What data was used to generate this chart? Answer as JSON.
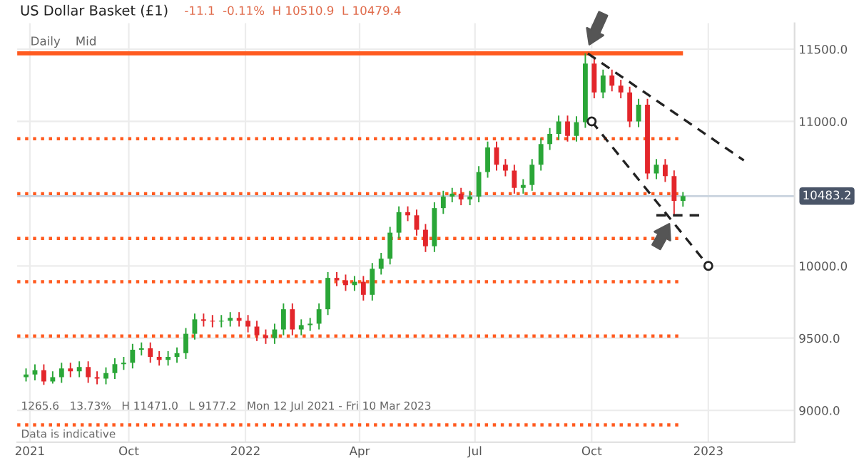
{
  "chart_data": {
    "type": "candlestick",
    "title": "US Dollar Basket (£1)",
    "subtitle": "-11.1  -0.11%  H 10510.9  L 10479.4",
    "annotations": [
      "Daily",
      "Mid",
      "1265.6   13.73%   H 11471.0   L 9177.2   Mon 12 Jul 2021 - Fri 10 Mar 2023",
      "Data is indicative"
    ],
    "x": [
      "2021-07-12",
      "2021-07-19",
      "2021-07-26",
      "2021-08-02",
      "2021-08-09",
      "2021-08-16",
      "2021-08-23",
      "2021-08-30",
      "2021-09-06",
      "2021-09-13",
      "2021-09-20",
      "2021-09-27",
      "2021-10-04",
      "2021-10-11",
      "2021-10-18",
      "2021-10-25",
      "2021-11-01",
      "2021-11-08",
      "2021-11-15",
      "2021-11-22",
      "2021-11-29",
      "2021-12-06",
      "2021-12-13",
      "2021-12-20",
      "2021-12-27",
      "2022-01-03",
      "2022-01-10",
      "2022-01-17",
      "2022-01-24",
      "2022-01-31",
      "2022-02-07",
      "2022-02-14",
      "2022-02-21",
      "2022-02-28",
      "2022-03-07",
      "2022-03-14",
      "2022-03-21",
      "2022-03-28",
      "2022-04-04",
      "2022-04-11",
      "2022-04-18",
      "2022-04-25",
      "2022-05-02",
      "2022-05-09",
      "2022-05-16",
      "2022-05-23",
      "2022-05-30",
      "2022-06-06",
      "2022-06-13",
      "2022-06-20",
      "2022-06-27",
      "2022-07-04",
      "2022-07-11",
      "2022-07-18",
      "2022-07-25",
      "2022-08-01",
      "2022-08-08",
      "2022-08-15",
      "2022-08-22",
      "2022-08-29",
      "2022-09-05",
      "2022-09-12",
      "2022-09-19",
      "2022-09-26",
      "2022-10-03",
      "2022-10-10",
      "2022-10-17",
      "2022-10-24",
      "2022-10-31",
      "2022-11-07",
      "2022-11-14",
      "2022-11-21",
      "2022-11-28",
      "2022-12-05",
      "2022-12-12"
    ],
    "ohlc": [
      [
        9230,
        9290,
        9200,
        9248
      ],
      [
        9248,
        9318,
        9208,
        9278
      ],
      [
        9278,
        9318,
        9177,
        9200
      ],
      [
        9200,
        9270,
        9185,
        9230
      ],
      [
        9230,
        9330,
        9190,
        9290
      ],
      [
        9290,
        9330,
        9230,
        9270
      ],
      [
        9270,
        9340,
        9230,
        9300
      ],
      [
        9300,
        9340,
        9190,
        9230
      ],
      [
        9230,
        9270,
        9180,
        9220
      ],
      [
        9220,
        9298,
        9180,
        9258
      ],
      [
        9258,
        9360,
        9218,
        9320
      ],
      [
        9320,
        9370,
        9280,
        9330
      ],
      [
        9330,
        9460,
        9290,
        9420
      ],
      [
        9420,
        9470,
        9380,
        9430
      ],
      [
        9430,
        9470,
        9330,
        9370
      ],
      [
        9370,
        9410,
        9310,
        9350
      ],
      [
        9350,
        9410,
        9310,
        9370
      ],
      [
        9370,
        9436,
        9330,
        9396
      ],
      [
        9396,
        9570,
        9356,
        9530
      ],
      [
        9530,
        9670,
        9490,
        9630
      ],
      [
        9630,
        9670,
        9580,
        9620
      ],
      [
        9620,
        9660,
        9575,
        9615
      ],
      [
        9615,
        9660,
        9575,
        9620
      ],
      [
        9620,
        9680,
        9580,
        9640
      ],
      [
        9640,
        9680,
        9580,
        9620
      ],
      [
        9620,
        9660,
        9540,
        9580
      ],
      [
        9580,
        9620,
        9480,
        9520
      ],
      [
        9520,
        9560,
        9460,
        9500
      ],
      [
        9500,
        9600,
        9460,
        9560
      ],
      [
        9560,
        9740,
        9520,
        9700
      ],
      [
        9700,
        9740,
        9520,
        9560
      ],
      [
        9560,
        9630,
        9520,
        9590
      ],
      [
        9590,
        9640,
        9550,
        9600
      ],
      [
        9600,
        9740,
        9560,
        9700
      ],
      [
        9700,
        9957,
        9660,
        9917
      ],
      [
        9917,
        9957,
        9860,
        9900
      ],
      [
        9900,
        9940,
        9827,
        9867
      ],
      [
        9867,
        9930,
        9827,
        9890
      ],
      [
        9890,
        9930,
        9760,
        9800
      ],
      [
        9800,
        10020,
        9760,
        9980
      ],
      [
        9980,
        10090,
        9940,
        10050
      ],
      [
        10050,
        10270,
        10010,
        10230
      ],
      [
        10230,
        10412,
        10190,
        10372
      ],
      [
        10372,
        10412,
        10310,
        10350
      ],
      [
        10350,
        10390,
        10210,
        10250
      ],
      [
        10250,
        10290,
        10096,
        10136
      ],
      [
        10136,
        10440,
        10096,
        10400
      ],
      [
        10400,
        10520,
        10360,
        10480
      ],
      [
        10480,
        10540,
        10440,
        10500
      ],
      [
        10500,
        10540,
        10420,
        10460
      ],
      [
        10460,
        10520,
        10420,
        10480
      ],
      [
        10480,
        10690,
        10440,
        10650
      ],
      [
        10650,
        10860,
        10610,
        10820
      ],
      [
        10820,
        10860,
        10660,
        10700
      ],
      [
        10700,
        10740,
        10620,
        10660
      ],
      [
        10660,
        10700,
        10500,
        10540
      ],
      [
        10540,
        10600,
        10500,
        10560
      ],
      [
        10560,
        10740,
        10520,
        10700
      ],
      [
        10700,
        10883,
        10660,
        10843
      ],
      [
        10843,
        10954,
        10803,
        10914
      ],
      [
        10914,
        11040,
        10874,
        11000
      ],
      [
        11000,
        11040,
        10860,
        10900
      ],
      [
        10900,
        11035,
        10860,
        10995
      ],
      [
        10995,
        11471,
        10955,
        11400
      ],
      [
        11400,
        11440,
        11160,
        11200
      ],
      [
        11200,
        11358,
        11160,
        11318
      ],
      [
        11318,
        11358,
        11208,
        11248
      ],
      [
        11248,
        11288,
        11160,
        11200
      ],
      [
        11200,
        11240,
        10960,
        11000
      ],
      [
        11000,
        11156,
        10960,
        11116
      ],
      [
        11116,
        11156,
        10600,
        10640
      ],
      [
        10640,
        10740,
        10600,
        10700
      ],
      [
        10700,
        10740,
        10581,
        10621
      ],
      [
        10621,
        10661,
        10350,
        10450
      ],
      [
        10450,
        10511,
        10410,
        10483
      ]
    ],
    "colors": [
      "#2aa637",
      "#2aa637",
      "#e3262b",
      "#2aa637",
      "#2aa637",
      "#e3262b",
      "#2aa637",
      "#e3262b",
      "#e3262b",
      "#2aa637",
      "#2aa637",
      "#2aa637",
      "#2aa637",
      "#2aa637",
      "#e3262b",
      "#e3262b",
      "#2aa637",
      "#2aa637",
      "#2aa637",
      "#2aa637",
      "#e3262b",
      "#e3262b",
      "#2aa637",
      "#2aa637",
      "#e3262b",
      "#e3262b",
      "#e3262b",
      "#e3262b",
      "#2aa637",
      "#2aa637",
      "#e3262b",
      "#2aa637",
      "#2aa637",
      "#2aa637",
      "#2aa637",
      "#e3262b",
      "#e3262b",
      "#2aa637",
      "#e3262b",
      "#2aa637",
      "#2aa637",
      "#2aa637",
      "#2aa637",
      "#e3262b",
      "#e3262b",
      "#e3262b",
      "#2aa637",
      "#2aa637",
      "#2aa637",
      "#e3262b",
      "#2aa637",
      "#2aa637",
      "#2aa637",
      "#e3262b",
      "#e3262b",
      "#e3262b",
      "#2aa637",
      "#2aa637",
      "#2aa637",
      "#2aa637",
      "#2aa637",
      "#e3262b",
      "#2aa637",
      "#2aa637",
      "#e3262b",
      "#2aa637",
      "#e3262b",
      "#e3262b",
      "#e3262b",
      "#2aa637",
      "#e3262b",
      "#2aa637",
      "#e3262b",
      "#e3262b",
      "#2aa637"
    ],
    "series": [
      {
        "type": "line",
        "x": [
          "2022-09-28",
          "2023-01-29"
        ],
        "values": [
          11470,
          10730
        ],
        "color": "#222222",
        "line_style": "dashed",
        "marker": "none"
      },
      {
        "type": "line",
        "x": [
          "2022-10-01",
          "2023-01-01"
        ],
        "values": [
          11000,
          10000
        ],
        "color": "#222222",
        "line_style": "dashed",
        "marker": "circle"
      },
      {
        "type": "line",
        "x": [
          "2022-11-21",
          "2022-12-26"
        ],
        "values": [
          10350,
          10350
        ],
        "color": "#222222",
        "line_style": "dashed",
        "marker": "none"
      }
    ],
    "ref_lines": [
      {
        "axis": "y",
        "value": 11471,
        "color": "#ff5a1f",
        "line_style": "solid"
      },
      {
        "axis": "y",
        "value": 10880,
        "color": "#ff5a1f",
        "line_style": "dotted"
      },
      {
        "axis": "y",
        "value": 10500,
        "color": "#ff5a1f",
        "line_style": "dotted"
      },
      {
        "axis": "y",
        "value": 10190,
        "color": "#ff5a1f",
        "line_style": "dotted"
      },
      {
        "axis": "y",
        "value": 9890,
        "color": "#ff5a1f",
        "line_style": "dotted"
      },
      {
        "axis": "y",
        "value": 9515,
        "color": "#ff5a1f",
        "line_style": "dotted"
      },
      {
        "axis": "y",
        "value": 8900,
        "color": "#ff5a1f",
        "line_style": "dotted"
      },
      {
        "axis": "y",
        "value": 10483.2,
        "label": "10483.2",
        "color": "#c9d3de",
        "line_style": "solid"
      }
    ],
    "xlim": [
      "2021-07-05",
      "2023-03-10"
    ],
    "xticks": [
      {
        "value": "2021-07-15",
        "label": "2021"
      },
      {
        "value": "2021-10-01",
        "label": "Oct"
      },
      {
        "value": "2022-01-01",
        "label": "2022"
      },
      {
        "value": "2022-04-01",
        "label": "Apr"
      },
      {
        "value": "2022-07-01",
        "label": "Jul"
      },
      {
        "value": "2022-10-01",
        "label": "Oct"
      },
      {
        "value": "2023-01-01",
        "label": "2023"
      }
    ],
    "ylim": [
      8780,
      11680
    ],
    "yticks": [
      {
        "value": 9000,
        "label": "9000.0"
      },
      {
        "value": 9500,
        "label": "9500.0"
      },
      {
        "value": 10000,
        "label": "10000.0"
      },
      {
        "value": 11000,
        "label": "11000.0"
      },
      {
        "value": 11500,
        "label": "11500.0"
      }
    ],
    "grid": true,
    "legend": false
  }
}
